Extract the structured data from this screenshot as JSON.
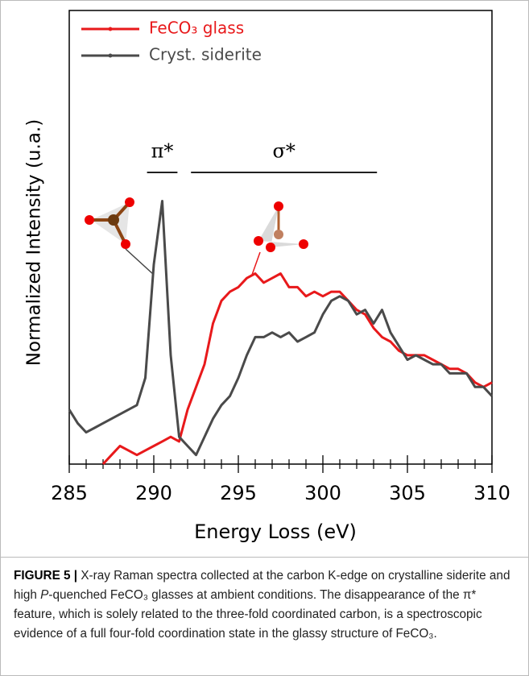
{
  "chart_data": {
    "type": "line",
    "xlabel": "Energy Loss (eV)",
    "ylabel": "Normalized Intensity (u.a.)",
    "x": [
      285,
      285.5,
      286,
      286.5,
      287,
      287.5,
      288,
      288.5,
      289,
      289.5,
      290,
      290.5,
      291,
      291.5,
      292,
      292.5,
      293,
      293.5,
      294,
      294.5,
      295,
      295.5,
      296,
      296.5,
      297,
      297.5,
      298,
      298.5,
      299,
      299.5,
      300,
      300.5,
      301,
      301.5,
      302,
      302.5,
      303,
      303.5,
      304,
      304.5,
      305,
      305.5,
      306,
      306.5,
      307,
      307.5,
      308,
      308.5,
      309,
      309.5,
      310
    ],
    "series": [
      {
        "name": "FeCO₃ glass",
        "color": "#e8191b",
        "values": [
          null,
          null,
          null,
          null,
          0.0,
          0.02,
          0.04,
          0.03,
          0.02,
          0.03,
          0.04,
          0.05,
          0.06,
          0.05,
          0.12,
          0.17,
          0.22,
          0.31,
          0.36,
          0.38,
          0.39,
          0.41,
          0.42,
          0.4,
          0.41,
          0.42,
          0.39,
          0.39,
          0.37,
          0.38,
          0.37,
          0.38,
          0.38,
          0.36,
          0.34,
          0.33,
          0.3,
          0.28,
          0.27,
          0.25,
          0.24,
          0.24,
          0.24,
          0.23,
          0.22,
          0.21,
          0.21,
          0.2,
          0.18,
          0.17,
          0.18
        ]
      },
      {
        "name": "Cryst. siderite",
        "color": "#4a4a4a",
        "values": [
          0.12,
          0.09,
          0.07,
          0.08,
          0.09,
          0.1,
          0.11,
          0.12,
          0.13,
          0.19,
          0.44,
          0.58,
          0.24,
          0.06,
          0.04,
          0.02,
          0.06,
          0.1,
          0.13,
          0.15,
          0.19,
          0.24,
          0.28,
          0.28,
          0.29,
          0.28,
          0.29,
          0.27,
          0.28,
          0.29,
          0.33,
          0.36,
          0.37,
          0.36,
          0.33,
          0.34,
          0.31,
          0.34,
          0.29,
          0.26,
          0.23,
          0.24,
          0.23,
          0.22,
          0.22,
          0.2,
          0.2,
          0.2,
          0.17,
          0.17,
          0.15
        ]
      }
    ],
    "xlim": [
      285,
      310
    ],
    "xticks": [
      285,
      290,
      295,
      300,
      305,
      310
    ],
    "xminorticks": [
      286,
      287,
      288,
      289,
      291,
      292,
      293,
      294,
      296,
      297,
      298,
      299,
      301,
      302,
      303,
      304,
      306,
      307,
      308,
      309
    ],
    "ylim": [
      0,
      1
    ],
    "legend": "upper left",
    "annotations": [
      {
        "text": "π*",
        "xrange": [
          289.6,
          291.4
        ]
      },
      {
        "text": "σ*",
        "xrange": [
          292.2,
          303.2
        ]
      }
    ]
  },
  "caption": {
    "label": "FIGURE 5 |",
    "before": " X-ray Raman spectra collected at the carbon K-edge on crystalline siderite and high ",
    "italic": "P",
    "after": "-quenched FeCO₃ glasses at ambient conditions. The disappearance of the π* feature, which is solely related to the three-fold coordinated carbon, is a spectroscopic evidence of a full four-fold coordination state in the glassy structure of FeCO₃."
  }
}
